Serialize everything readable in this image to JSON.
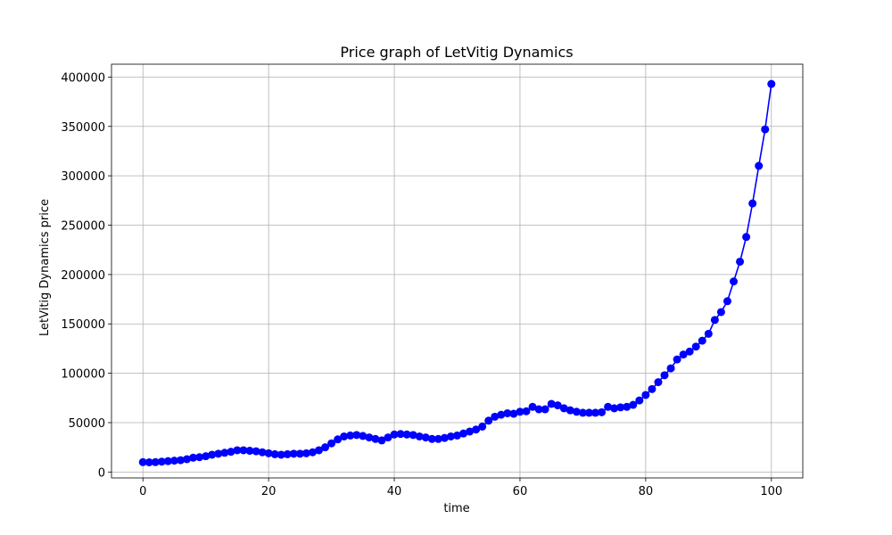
{
  "chart_data": {
    "type": "line",
    "title": "Price graph of LetVitig Dynamics",
    "xlabel": "time",
    "ylabel": "LetVitig Dynamics price",
    "xlim": [
      -5,
      105
    ],
    "ylim": [
      -6000,
      413000
    ],
    "xticks": [
      0,
      20,
      40,
      60,
      80,
      100
    ],
    "yticks": [
      0,
      50000,
      100000,
      150000,
      200000,
      250000,
      300000,
      350000,
      400000
    ],
    "grid": true,
    "series": [
      {
        "color": "#0000ff",
        "marker": "circle",
        "x": [
          0,
          1,
          2,
          3,
          4,
          5,
          6,
          7,
          8,
          9,
          10,
          11,
          12,
          13,
          14,
          15,
          16,
          17,
          18,
          19,
          20,
          21,
          22,
          23,
          24,
          25,
          26,
          27,
          28,
          29,
          30,
          31,
          32,
          33,
          34,
          35,
          36,
          37,
          38,
          39,
          40,
          41,
          42,
          43,
          44,
          45,
          46,
          47,
          48,
          49,
          50,
          51,
          52,
          53,
          54,
          55,
          56,
          57,
          58,
          59,
          60,
          61,
          62,
          63,
          64,
          65,
          66,
          67,
          68,
          69,
          70,
          71,
          72,
          73,
          74,
          75,
          76,
          77,
          78,
          79,
          80,
          81,
          82,
          83,
          84,
          85,
          86,
          87,
          88,
          89,
          90,
          91,
          92,
          93,
          94,
          95,
          96,
          97,
          98,
          99,
          100
        ],
        "y": [
          10000,
          9800,
          10000,
          10500,
          11000,
          11500,
          12000,
          13000,
          14500,
          15000,
          16000,
          17500,
          18500,
          19500,
          20500,
          22000,
          22000,
          21500,
          21000,
          20000,
          19000,
          18000,
          17500,
          18000,
          18500,
          18500,
          19000,
          20000,
          22000,
          25000,
          29000,
          33000,
          36000,
          37000,
          37500,
          36500,
          35000,
          33500,
          32000,
          35000,
          38000,
          38500,
          38000,
          37500,
          36000,
          35000,
          33500,
          33500,
          34500,
          36000,
          37000,
          39000,
          41000,
          43000,
          46000,
          52000,
          56000,
          58000,
          59500,
          59000,
          61000,
          61500,
          66000,
          63500,
          63500,
          69000,
          67500,
          64500,
          62500,
          61000,
          60000,
          60000,
          60000,
          60500,
          66000,
          64500,
          65500,
          66000,
          68000,
          72500,
          78000,
          84000,
          91000,
          98000,
          105000,
          114000,
          119000,
          122000,
          127000,
          133000,
          140000,
          154000,
          162000,
          173000,
          193000,
          213000,
          238000,
          272000,
          310000,
          347000,
          393000
        ]
      }
    ]
  }
}
